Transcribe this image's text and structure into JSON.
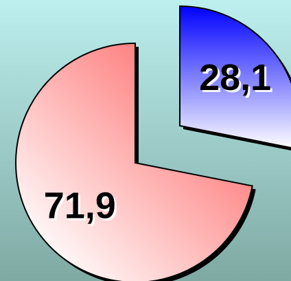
{
  "chart_data": {
    "type": "pie",
    "values": [
      28.1,
      71.9
    ],
    "value_labels": [
      "28,1",
      "71,9"
    ],
    "colors": [
      "#0000ff",
      "#ff6666"
    ]
  }
}
